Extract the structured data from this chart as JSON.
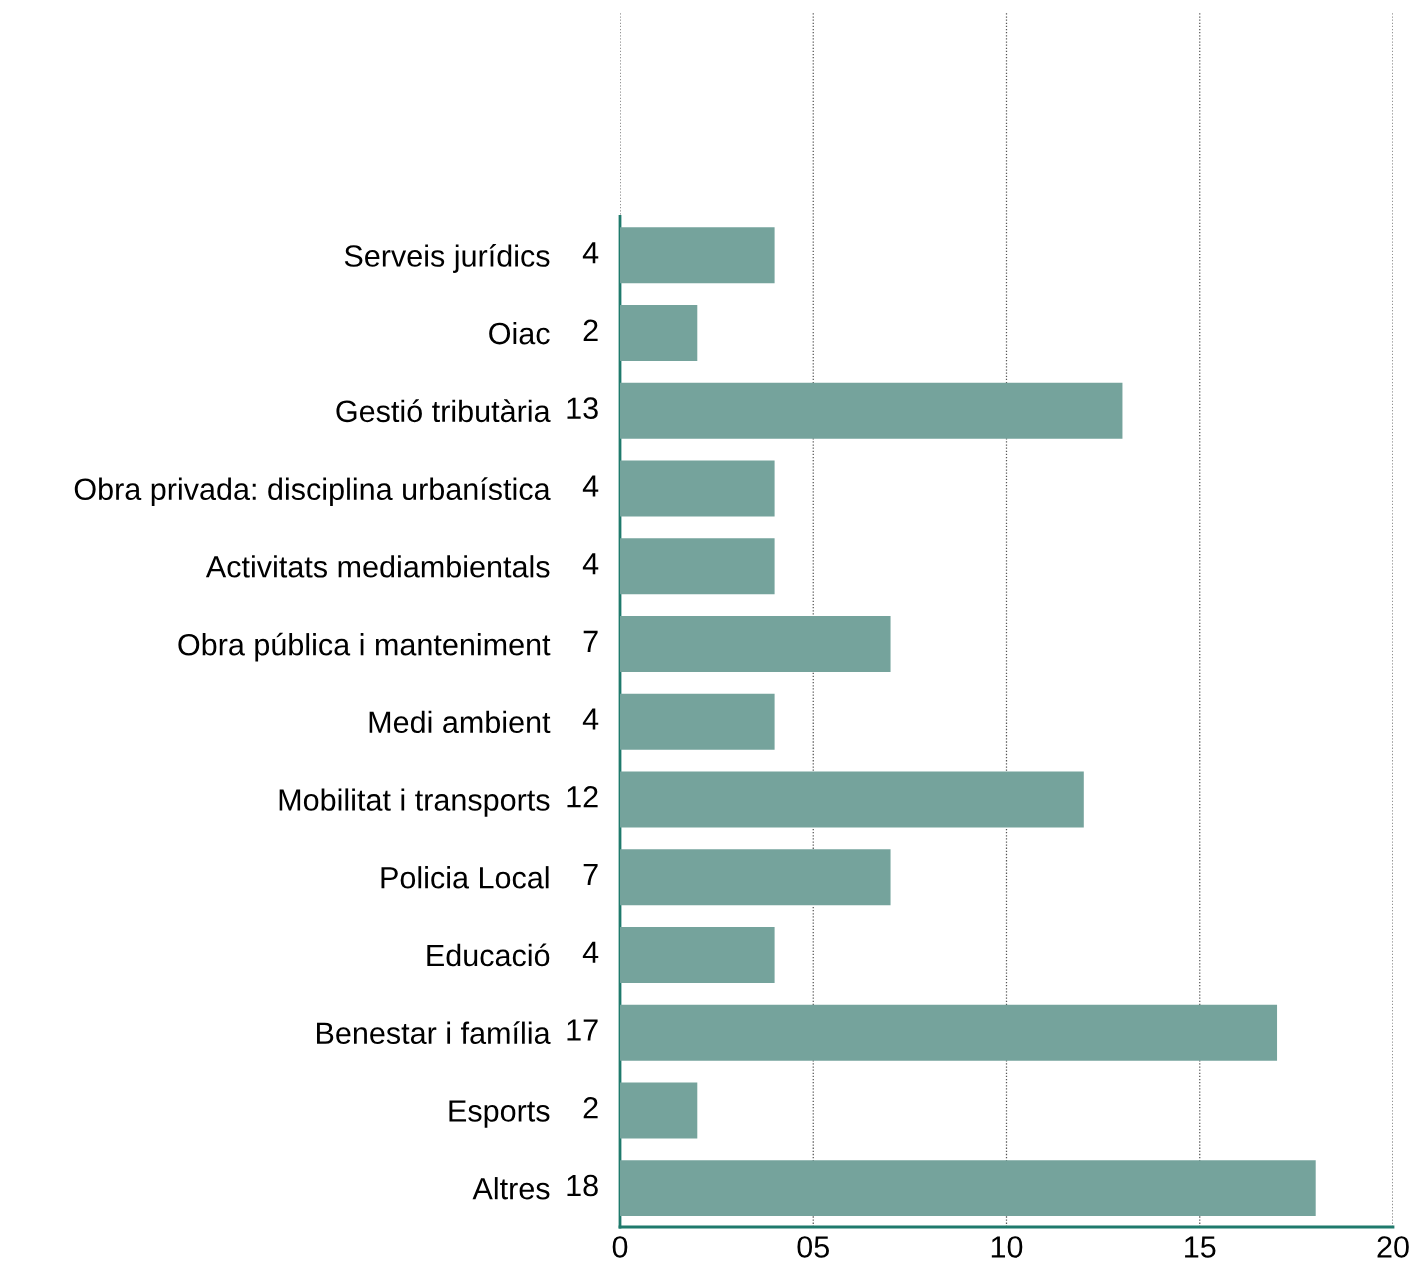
{
  "chart_data": {
    "type": "bar",
    "orientation": "horizontal",
    "categories": [
      "Serveis jurídics",
      "Oiac",
      "Gestió tributària",
      "Obra privada: disciplina urbanística",
      "Activitats mediambientals",
      "Obra pública i manteniment",
      "Medi ambient",
      "Mobilitat i transports",
      "Policia Local",
      "Educació",
      "Benestar i família",
      "Esports",
      "Altres"
    ],
    "values": [
      4,
      2,
      13,
      4,
      4,
      7,
      4,
      12,
      7,
      4,
      17,
      2,
      18
    ],
    "color": "#75a39c",
    "xlim": [
      0,
      20
    ],
    "xticks": [
      0,
      {
        "value": 5,
        "label": "05"
      },
      10,
      15,
      20
    ],
    "grid": "x",
    "data_labels": true
  }
}
